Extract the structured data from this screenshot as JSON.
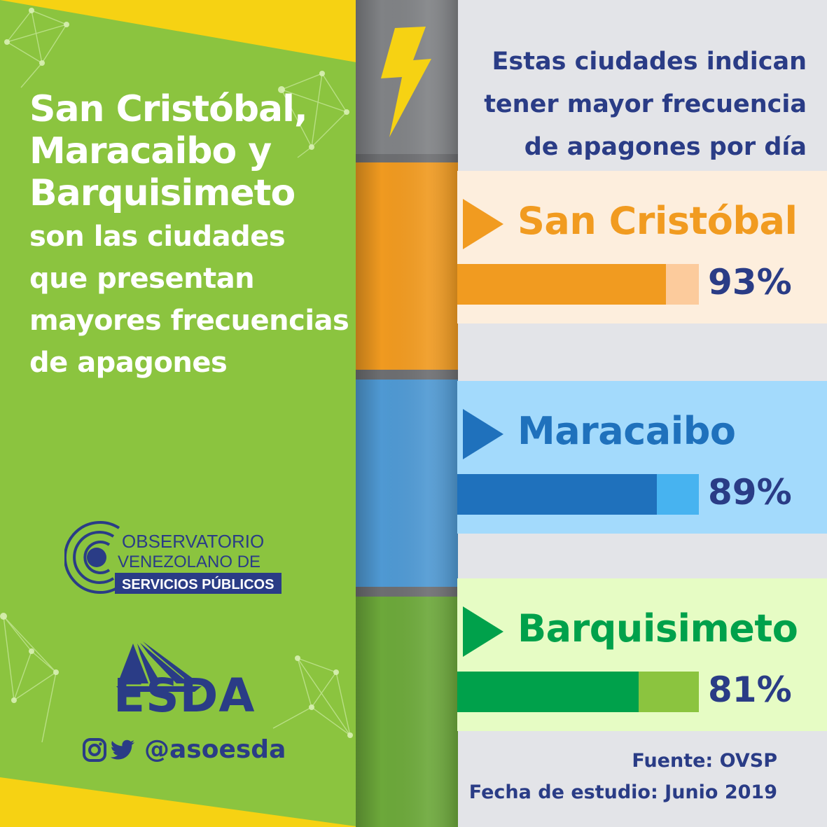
{
  "headline": {
    "main": "San Cristóbal, Maracaibo y Barquisimeto",
    "sub": "son las ciudades que presentan mayores frecuencias de apagones"
  },
  "logos": {
    "ovsp_line1": "OBSERVATORIO",
    "ovsp_line2": "VENEZOLANO DE",
    "ovsp_line3": "SERVICIOS PÚBLICOS",
    "esda": "ESDA"
  },
  "social": {
    "icons": [
      "instagram-icon",
      "twitter-icon"
    ],
    "handle": "@asoesda"
  },
  "chart_data": {
    "type": "bar",
    "title": "Estas ciudades indican tener mayor frecuencia de apagones por día",
    "categories": [
      "San Cristóbal",
      "Maracaibo",
      "Barquisimeto"
    ],
    "values": [
      93,
      89,
      81
    ],
    "value_labels": [
      "93%",
      "89%",
      "81%"
    ],
    "ylim": [
      0,
      100
    ],
    "orientation": "horizontal",
    "colors": {
      "San Cristóbal": {
        "bar": "#f19b20",
        "track": "#fccb9c",
        "band": "#fdeedd",
        "text": "#f19b20"
      },
      "Maracaibo": {
        "bar": "#1f71bc",
        "track": "#47b3f0",
        "band": "#a3dafc",
        "text": "#1f71bc"
      },
      "Barquisimeto": {
        "bar": "#00a14b",
        "track": "#8bc43f",
        "band": "#e6fcc4",
        "text": "#00a14b"
      }
    }
  },
  "footer": {
    "source": "Fuente: OVSP",
    "date": "Fecha de estudio: Junio 2019"
  },
  "colors": {
    "navy": "#2a3c86",
    "green_panel": "#8bc43f",
    "yellow": "#f6d213"
  }
}
